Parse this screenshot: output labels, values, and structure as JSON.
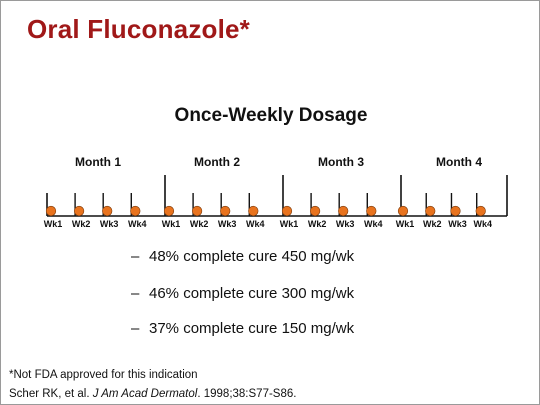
{
  "slide": {
    "title": "Oral Fluconazole*",
    "subtitle": "Once-Weekly Dosage",
    "months": [
      "Month 1",
      "Month 2",
      "Month 3",
      "Month 4"
    ],
    "week_labels": [
      "Wk1",
      "Wk2",
      "Wk3",
      "Wk4"
    ],
    "dose_marker_color": "#e8731e",
    "bullets": [
      "48% complete cure 450 mg/wk",
      "46% complete cure 300 mg/wk",
      "37% complete cure 150 mg/wk"
    ],
    "bullet_marker": "–",
    "footnote": "*Not FDA approved for this indication",
    "citation": {
      "authors": "Scher RK, et al. ",
      "journal": "J Am Acad Dermatol",
      "details": ". 1998;38:S77-S86."
    }
  }
}
